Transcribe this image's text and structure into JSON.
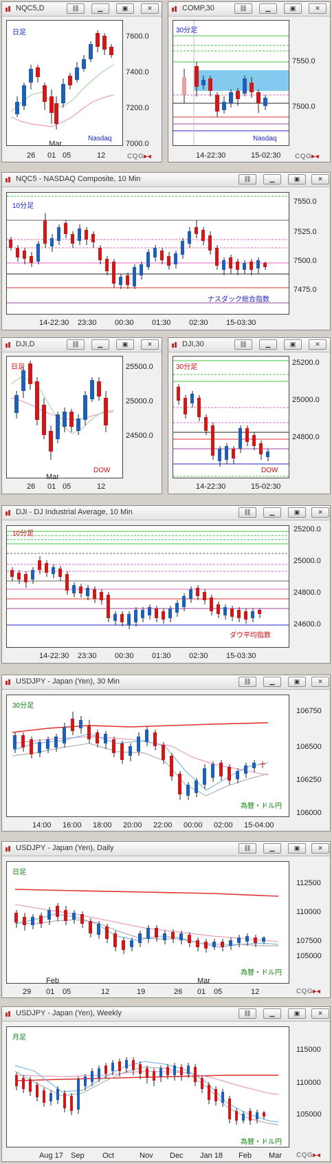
{
  "windows": [
    {
      "id": "w1",
      "title": "NQC5,D",
      "top_label": "日足",
      "top_label_color": "#1a24c8",
      "corner_label": "Nasdaq",
      "corner_label_color": "#1a24c8",
      "y_ticks": [
        "7600.0",
        "7400.0",
        "7200.0",
        "7000.0"
      ],
      "x_ticks": [
        "26",
        "01",
        "05",
        "12"
      ],
      "x_sub": "Mar"
    },
    {
      "id": "w2",
      "title": "COMP,30",
      "top_label": "30分足",
      "top_label_color": "#1a24c8",
      "corner_label": "Nasdaq",
      "corner_label_color": "#1a24c8",
      "y_ticks": [
        "7550.0",
        "7500.0"
      ],
      "x_ticks": [
        "14-22:30",
        "15-02:30"
      ]
    },
    {
      "id": "w3",
      "title": "NQC5 - NASDAQ Composite, 10 Min",
      "top_label": "10分足",
      "top_label_color": "#1a24c8",
      "corner_label": "ナスダック総合指数",
      "corner_label_color": "#1a24c8",
      "y_ticks": [
        "7550.0",
        "7525.0",
        "7500.0",
        "7475.0"
      ],
      "x_ticks": [
        "14-22:30",
        "23:30",
        "00:30",
        "01:30",
        "02:30",
        "15-03:30"
      ]
    },
    {
      "id": "w4",
      "title": "DJI,D",
      "top_label": "日足",
      "top_label_color": "#d01010",
      "corner_label": "DOW",
      "corner_label_color": "#d01010",
      "y_ticks": [
        "25500.0",
        "25000.0",
        "24500.0"
      ],
      "x_ticks": [
        "26",
        "01",
        "05",
        "12"
      ],
      "x_sub": "Mar"
    },
    {
      "id": "w5",
      "title": "DJI,30",
      "top_label": "30分足",
      "top_label_color": "#d01010",
      "corner_label": "DOW",
      "corner_label_color": "#d01010",
      "y_ticks": [
        "25200.0",
        "25000.0",
        "24800.0"
      ],
      "x_ticks": [
        "14-22:30",
        "15-02:30"
      ]
    },
    {
      "id": "w6",
      "title": "DJI - DJ Industrial Average, 10 Min",
      "top_label": "10分足",
      "top_label_color": "#d01010",
      "corner_label": "ダウ平均指数",
      "corner_label_color": "#d01010",
      "y_ticks": [
        "25200.0",
        "25000.0",
        "24800.0",
        "24600.0"
      ],
      "x_ticks": [
        "14-22:30",
        "23:30",
        "00:30",
        "01:30",
        "02:30",
        "15-03:30"
      ]
    },
    {
      "id": "w7",
      "title": "USDJPY - Japan (Yen), 30 Min",
      "top_label": "30分足",
      "top_label_color": "#108010",
      "corner_label": "為替・ドル円",
      "corner_label_color": "#108010",
      "y_ticks": [
        "106750",
        "106500",
        "106250",
        "106000"
      ],
      "x_ticks": [
        "14:00",
        "16:00",
        "18:00",
        "20:00",
        "22:00",
        "00:00",
        "02:00",
        "15-04:00"
      ]
    },
    {
      "id": "w8",
      "title": "USDJPY - Japan (Yen), Daily",
      "top_label": "日足",
      "top_label_color": "#108010",
      "corner_label": "為替・ドル円",
      "corner_label_color": "#108010",
      "y_ticks": [
        "112500",
        "110000",
        "107500",
        "105000"
      ],
      "x_ticks": [
        "29",
        "01",
        "05",
        "12",
        "19",
        "26",
        "01",
        "05",
        "12"
      ],
      "x_subs": [
        "Feb",
        "Mar"
      ]
    },
    {
      "id": "w9",
      "title": "USDJPY - Japan (Yen), Weekly",
      "top_label": "月足",
      "top_label_color": "#108010",
      "corner_label": "為替・ドル円",
      "corner_label_color": "#108010",
      "y_ticks": [
        "115000",
        "110000",
        "105000"
      ],
      "x_ticks": [
        "Aug 17",
        "Sep",
        "Oct",
        "Nov",
        "Dec",
        "Jan 18",
        "Feb",
        "Mar"
      ]
    }
  ],
  "branding": {
    "cqg_a": "CQG",
    "cqg_b": "▸◂"
  },
  "colors": {
    "bull": "#1e5fb8",
    "bear": "#d01818",
    "ma_red": "#e03030",
    "ma_pink": "#e8a0c0",
    "ma_green": "#40c040",
    "ma_blue": "#80b8e8",
    "ma_gray": "#b0b0b0",
    "highlight": "#58b8e8"
  }
}
